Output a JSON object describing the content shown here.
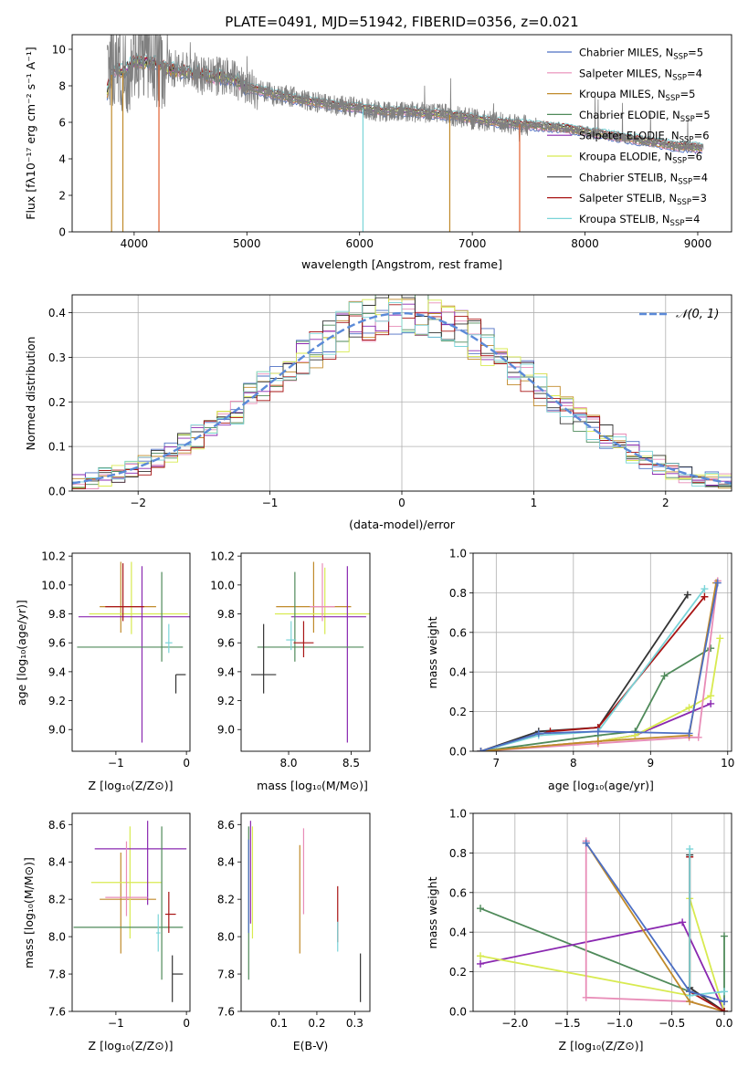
{
  "chart_data": [
    {
      "id": "spectrum",
      "type": "line",
      "title": "PLATE=0491, MJD=51942, FIBERID=0356, z=0.021",
      "xlabel": "wavelength [Angstrom, rest frame]",
      "ylabel": "Flux [fλ10⁻¹⁷ erg cm⁻² s⁻¹ A⁻¹]",
      "xlim": [
        3450,
        9300
      ],
      "ylim": [
        0,
        10.8
      ],
      "xticks": [
        4000,
        5000,
        6000,
        7000,
        8000,
        9000
      ],
      "yticks": [
        0,
        2,
        4,
        6,
        8,
        10
      ],
      "legend": {
        "placement": "top-right",
        "entries": [
          {
            "label": "Chabrier MILES, N",
            "sub": "SSP",
            "suffix": "=5",
            "color": "#4d6fc4"
          },
          {
            "label": "Salpeter MILES, N",
            "sub": "SSP",
            "suffix": "=4",
            "color": "#e88cb7"
          },
          {
            "label": "Kroupa MILES, N",
            "sub": "SSP",
            "suffix": "=5",
            "color": "#c08a2a"
          },
          {
            "label": "Chabrier ELODIE, N",
            "sub": "SSP",
            "suffix": "=5",
            "color": "#4f8a5a"
          },
          {
            "label": "Salpeter ELODIE, N",
            "sub": "SSP",
            "suffix": "=6",
            "color": "#8a28b0"
          },
          {
            "label": "Kroupa ELODIE, N",
            "sub": "SSP",
            "suffix": "=6",
            "color": "#d8ea50"
          },
          {
            "label": "Chabrier STELIB, N",
            "sub": "SSP",
            "suffix": "=4",
            "color": "#333333"
          },
          {
            "label": "Salpeter STELIB, N",
            "sub": "SSP",
            "suffix": "=3",
            "color": "#a81414"
          },
          {
            "label": "Kroupa STELIB, N",
            "sub": "SSP",
            "suffix": "=4",
            "color": "#7ad4d8"
          }
        ]
      },
      "series": [
        {
          "name": "data",
          "color": "#808080",
          "x": [
            3760,
            3800,
            3850,
            3900,
            3950,
            4000,
            4100,
            4200,
            4300,
            4400,
            4500,
            4600,
            4700,
            4800,
            4900,
            5000,
            5200,
            5400,
            5600,
            5800,
            6000,
            6200,
            6400,
            6600,
            6800,
            7000,
            7200,
            7400,
            7600,
            7800,
            8000,
            8200,
            8400,
            8600,
            8800,
            9000
          ],
          "y": [
            7.9,
            9.2,
            9.5,
            8.6,
            8.9,
            9.7,
            9.6,
            9.2,
            8.9,
            9.0,
            8.8,
            8.6,
            8.5,
            8.6,
            8.3,
            7.9,
            7.6,
            7.4,
            7.1,
            6.9,
            6.8,
            6.6,
            6.6,
            6.5,
            6.4,
            6.2,
            6.0,
            5.9,
            5.8,
            5.7,
            5.5,
            5.3,
            5.1,
            4.9,
            4.7,
            4.6
          ]
        },
        {
          "name": "model",
          "color": "#7ad4d8",
          "x": [
            3760,
            3800,
            3850,
            3900,
            3950,
            4000,
            4100,
            4200,
            4300,
            4400,
            4500,
            4600,
            4700,
            4800,
            4900,
            5000,
            5200,
            5400,
            5600,
            5800,
            6000,
            6200,
            6400,
            6600,
            6800,
            7000,
            7200,
            7400,
            7600,
            7800,
            8000,
            8200,
            8400,
            8600,
            8800,
            9000
          ],
          "y": [
            7.7,
            8.6,
            8.9,
            8.7,
            9.0,
            9.3,
            9.3,
            9.2,
            8.9,
            8.8,
            8.7,
            8.6,
            8.5,
            8.5,
            8.3,
            7.9,
            7.6,
            7.3,
            7.1,
            6.9,
            6.8,
            6.6,
            6.6,
            6.5,
            6.4,
            6.2,
            6.0,
            5.9,
            5.8,
            5.7,
            5.5,
            5.3,
            5.1,
            4.9,
            4.7,
            4.6
          ]
        }
      ],
      "annotations": {
        "absorption_dips_x": [
          3800,
          3900,
          4220,
          6030,
          6800,
          7420
        ]
      }
    },
    {
      "id": "residuals",
      "type": "histogram",
      "xlabel": "(data-model)/error",
      "ylabel": "Normed distribution",
      "xlim": [
        -2.5,
        2.5
      ],
      "ylim": [
        0,
        0.44
      ],
      "xticks": [
        -2,
        -1,
        0,
        1,
        2
      ],
      "yticks": [
        0.0,
        0.1,
        0.2,
        0.3,
        0.4
      ],
      "grid": true,
      "legend": {
        "placement": "top-right",
        "label": "𝒩(0, 1)",
        "color": "#5b8ad8"
      },
      "bin_width": 0.1,
      "series_mean": [
        0.02,
        0.04,
        0.05,
        0.06,
        0.08,
        0.1,
        0.12,
        0.15,
        0.18,
        0.21,
        0.24,
        0.27,
        0.3,
        0.33,
        0.35,
        0.37,
        0.38,
        0.39,
        0.4,
        0.395,
        0.385,
        0.37,
        0.35,
        0.33,
        0.3,
        0.27,
        0.24,
        0.21,
        0.18,
        0.15,
        0.12,
        0.1,
        0.08,
        0.06,
        0.05,
        0.04
      ]
    },
    {
      "id": "age_vs_Z",
      "type": "errorbar",
      "xlabel": "Z [log₁₀(Z/Z⊙)]",
      "ylabel": "age  [log₁₀(age/yr)]",
      "xlim": [
        -1.62,
        0.05
      ],
      "ylim": [
        8.85,
        10.22
      ],
      "xticks": [
        -1,
        0
      ],
      "yticks": [
        9.0,
        9.2,
        9.4,
        9.6,
        9.8,
        10.0,
        10.2
      ],
      "points": [
        {
          "x": -0.93,
          "y": 9.85,
          "xerr": [
            0.3,
            0.5
          ],
          "yerr": [
            0.18,
            0.31
          ],
          "color": "#c08a2a"
        },
        {
          "x": -0.78,
          "y": 9.8,
          "xerr": [
            0.6,
            0.8
          ],
          "yerr": [
            0.14,
            0.36
          ],
          "color": "#d8ea50"
        },
        {
          "x": -0.63,
          "y": 9.78,
          "xerr": [
            0.9,
            0.9
          ],
          "yerr": [
            0.87,
            0.35
          ],
          "color": "#8a28b0"
        },
        {
          "x": -0.35,
          "y": 9.57,
          "xerr": [
            1.2,
            0.3
          ],
          "yerr": [
            0.1,
            0.52
          ],
          "color": "#4f8a5a"
        },
        {
          "x": -0.9,
          "y": 9.85,
          "xerr": [
            0.25,
            0.3
          ],
          "yerr": [
            0.1,
            0.3
          ],
          "color": "#a81414"
        },
        {
          "x": -0.25,
          "y": 9.6,
          "xerr": [
            0.05,
            0.05
          ],
          "yerr": [
            0.07,
            0.13
          ],
          "color": "#7ad4d8"
        },
        {
          "x": -0.15,
          "y": 9.38,
          "xerr": [
            0.0,
            0.14
          ],
          "yerr": [
            0.13,
            0.0
          ],
          "color": "#333333"
        }
      ]
    },
    {
      "id": "age_vs_mass",
      "type": "errorbar",
      "xlabel": "mass [log₁₀(M/M⊙)]",
      "xlim": [
        7.62,
        8.65
      ],
      "ylim": [
        8.85,
        10.22
      ],
      "xticks": [
        8.0,
        8.5
      ],
      "yticks": [
        9.0,
        9.2,
        9.4,
        9.6,
        9.8,
        10.0,
        10.2
      ],
      "points": [
        {
          "x": 8.2,
          "y": 9.85,
          "xerr": [
            0.3,
            0.3
          ],
          "yerr": [
            0.18,
            0.31
          ],
          "color": "#c08a2a"
        },
        {
          "x": 8.29,
          "y": 9.8,
          "xerr": [
            0.4,
            0.4
          ],
          "yerr": [
            0.14,
            0.32
          ],
          "color": "#d8ea50"
        },
        {
          "x": 8.47,
          "y": 9.78,
          "xerr": [
            0.45,
            0.15
          ],
          "yerr": [
            0.87,
            0.35
          ],
          "color": "#8a28b0"
        },
        {
          "x": 8.05,
          "y": 9.57,
          "xerr": [
            0.3,
            0.55
          ],
          "yerr": [
            0.1,
            0.52
          ],
          "color": "#4f8a5a"
        },
        {
          "x": 8.27,
          "y": 9.85,
          "xerr": [
            0.1,
            0.1
          ],
          "yerr": [
            0.1,
            0.3
          ],
          "color": "#e88cb7"
        },
        {
          "x": 8.12,
          "y": 9.6,
          "xerr": [
            0.08,
            0.08
          ],
          "yerr": [
            0.1,
            0.15
          ],
          "color": "#a81414"
        },
        {
          "x": 8.02,
          "y": 9.62,
          "xerr": [
            0.04,
            0.04
          ],
          "yerr": [
            0.07,
            0.13
          ],
          "color": "#7ad4d8"
        },
        {
          "x": 7.8,
          "y": 9.38,
          "xerr": [
            0.1,
            0.1
          ],
          "yerr": [
            0.13,
            0.35
          ],
          "color": "#333333"
        }
      ]
    },
    {
      "id": "massweight_vs_age",
      "type": "line",
      "xlabel": "age  [log₁₀(age/yr)]",
      "ylabel": "mass weight",
      "xlim": [
        6.7,
        10.05
      ],
      "ylim": [
        0,
        1.0
      ],
      "xticks": [
        7,
        8,
        9,
        10
      ],
      "yticks": [
        0.0,
        0.2,
        0.4,
        0.6,
        0.8,
        1.0
      ],
      "grid": true,
      "series": [
        {
          "color": "#333333",
          "x": [
            6.8,
            7.55,
            8.32,
            9.48
          ],
          "y": [
            0.0,
            0.1,
            0.12,
            0.79
          ]
        },
        {
          "color": "#a81414",
          "x": [
            6.8,
            7.7,
            8.32,
            9.7
          ],
          "y": [
            0.0,
            0.1,
            0.12,
            0.78
          ]
        },
        {
          "color": "#7ad4d8",
          "x": [
            6.8,
            7.55,
            8.32,
            9.7
          ],
          "y": [
            0.0,
            0.08,
            0.1,
            0.82
          ]
        },
        {
          "color": "#4f8a5a",
          "x": [
            6.8,
            8.32,
            8.8,
            9.18,
            9.78
          ],
          "y": [
            0.0,
            0.08,
            0.1,
            0.38,
            0.52
          ]
        },
        {
          "color": "#8a28b0",
          "x": [
            6.8,
            8.32,
            8.8,
            9.78
          ],
          "y": [
            0.0,
            0.05,
            0.08,
            0.24
          ]
        },
        {
          "color": "#d8ea50",
          "x": [
            6.8,
            8.32,
            8.8,
            9.5,
            9.78,
            9.9
          ],
          "y": [
            0.0,
            0.05,
            0.08,
            0.22,
            0.28,
            0.57
          ]
        },
        {
          "color": "#e88cb7",
          "x": [
            6.8,
            8.32,
            9.5,
            9.62,
            9.87
          ],
          "y": [
            0.0,
            0.04,
            0.07,
            0.07,
            0.86
          ]
        },
        {
          "color": "#c08a2a",
          "x": [
            6.8,
            8.32,
            9.5,
            9.85
          ],
          "y": [
            0.0,
            0.05,
            0.08,
            0.85
          ]
        },
        {
          "color": "#4d6fc4",
          "x": [
            6.8,
            7.55,
            8.32,
            9.5,
            9.87
          ],
          "y": [
            0.0,
            0.09,
            0.1,
            0.09,
            0.85
          ]
        }
      ]
    },
    {
      "id": "mass_vs_Z",
      "type": "errorbar",
      "xlabel": "Z [log₁₀(Z/Z⊙)]",
      "ylabel": "mass [log₁₀(M/M⊙)]",
      "xlim": [
        -1.62,
        0.05
      ],
      "ylim": [
        7.6,
        8.66
      ],
      "xticks": [
        -1,
        0
      ],
      "yticks": [
        7.6,
        7.8,
        8.0,
        8.2,
        8.4,
        8.6
      ],
      "points": [
        {
          "x": -0.93,
          "y": 8.2,
          "xerr": [
            0.3,
            0.5
          ],
          "yerr": [
            0.29,
            0.25
          ],
          "color": "#c08a2a"
        },
        {
          "x": -0.8,
          "y": 8.29,
          "xerr": [
            0.55,
            0.45
          ],
          "yerr": [
            0.3,
            0.3
          ],
          "color": "#d8ea50"
        },
        {
          "x": -0.55,
          "y": 8.47,
          "xerr": [
            0.75,
            0.55
          ],
          "yerr": [
            0.3,
            0.15
          ],
          "color": "#8a28b0"
        },
        {
          "x": -0.35,
          "y": 8.05,
          "xerr": [
            1.25,
            0.3
          ],
          "yerr": [
            0.28,
            0.54
          ],
          "color": "#4f8a5a"
        },
        {
          "x": -0.85,
          "y": 8.21,
          "xerr": [
            0.3,
            0.3
          ],
          "yerr": [
            0.1,
            0.3
          ],
          "color": "#e88cb7"
        },
        {
          "x": -0.25,
          "y": 8.12,
          "xerr": [
            0.05,
            0.1
          ],
          "yerr": [
            0.1,
            0.12
          ],
          "color": "#a81414"
        },
        {
          "x": -0.4,
          "y": 8.02,
          "xerr": [
            0.03,
            0.03
          ],
          "yerr": [
            0.1,
            0.1
          ],
          "color": "#7ad4d8"
        },
        {
          "x": -0.2,
          "y": 7.8,
          "xerr": [
            0.0,
            0.15
          ],
          "yerr": [
            0.15,
            0.1
          ],
          "color": "#333333"
        }
      ]
    },
    {
      "id": "mass_vs_EBV",
      "type": "errorbar",
      "xlabel": "E(B-V)",
      "xlim": [
        0.0,
        0.34
      ],
      "ylim": [
        7.6,
        8.66
      ],
      "xticks": [
        0.1,
        0.2,
        0.3
      ],
      "yticks": [
        7.6,
        7.8,
        8.0,
        8.2,
        8.4,
        8.6
      ],
      "points": [
        {
          "x": 0.025,
          "y": 8.47,
          "yerr": [
            0.4,
            0.15
          ],
          "color": "#8a28b0"
        },
        {
          "x": 0.02,
          "y": 8.05,
          "yerr": [
            0.28,
            0.54
          ],
          "color": "#4f8a5a"
        },
        {
          "x": 0.03,
          "y": 8.29,
          "yerr": [
            0.3,
            0.3
          ],
          "color": "#d8ea50"
        },
        {
          "x": 0.02,
          "y": 8.22,
          "yerr": [
            0.2,
            0.3
          ],
          "color": "#4d6fc4"
        },
        {
          "x": 0.155,
          "y": 8.2,
          "yerr": [
            0.29,
            0.29
          ],
          "color": "#c08a2a"
        },
        {
          "x": 0.165,
          "y": 8.35,
          "yerr": [
            0.23,
            0.23
          ],
          "color": "#e88cb7"
        },
        {
          "x": 0.255,
          "y": 8.12,
          "yerr": [
            0.15,
            0.15
          ],
          "color": "#a81414"
        },
        {
          "x": 0.255,
          "y": 8.0,
          "yerr": [
            0.08,
            0.08
          ],
          "color": "#7ad4d8"
        },
        {
          "x": 0.315,
          "y": 7.78,
          "yerr": [
            0.13,
            0.13
          ],
          "color": "#333333"
        }
      ]
    },
    {
      "id": "massweight_vs_Z",
      "type": "line",
      "xlabel": "Z [log₁₀(Z/Z⊙)]",
      "ylabel": "mass weight",
      "xlim": [
        -2.4,
        0.07
      ],
      "ylim": [
        0,
        1.0
      ],
      "xticks": [
        -2.0,
        -1.5,
        -1.0,
        -0.5,
        0.0
      ],
      "yticks": [
        0.0,
        0.2,
        0.4,
        0.6,
        0.8,
        1.0
      ],
      "grid": true,
      "series": [
        {
          "color": "#4f8a5a",
          "x": [
            -2.33,
            -0.33,
            0.0,
            0.0
          ],
          "y": [
            0.52,
            0.1,
            0.05,
            0.38
          ]
        },
        {
          "color": "#8a28b0",
          "x": [
            -2.33,
            -0.4,
            0.0
          ],
          "y": [
            0.24,
            0.45,
            0.0
          ]
        },
        {
          "color": "#d8ea50",
          "x": [
            -2.33,
            -0.33,
            -0.33,
            0.0
          ],
          "y": [
            0.28,
            0.08,
            0.57,
            0.0
          ]
        },
        {
          "color": "#e88cb7",
          "x": [
            -1.32,
            -1.32,
            -0.33,
            0.0
          ],
          "y": [
            0.86,
            0.07,
            0.05,
            0.0
          ]
        },
        {
          "color": "#c08a2a",
          "x": [
            -1.32,
            -0.33,
            0.0
          ],
          "y": [
            0.85,
            0.05,
            0.0
          ]
        },
        {
          "color": "#333333",
          "x": [
            -0.33,
            -0.33,
            0.0
          ],
          "y": [
            0.79,
            0.12,
            0.0
          ]
        },
        {
          "color": "#a81414",
          "x": [
            -0.33,
            -0.33,
            0.0
          ],
          "y": [
            0.78,
            0.1,
            0.0
          ]
        },
        {
          "color": "#7ad4d8",
          "x": [
            -0.33,
            -0.33,
            0.0
          ],
          "y": [
            0.82,
            0.08,
            0.1
          ]
        },
        {
          "color": "#4d6fc4",
          "x": [
            -1.32,
            -0.33,
            0.0
          ],
          "y": [
            0.85,
            0.1,
            0.05
          ]
        }
      ]
    }
  ]
}
